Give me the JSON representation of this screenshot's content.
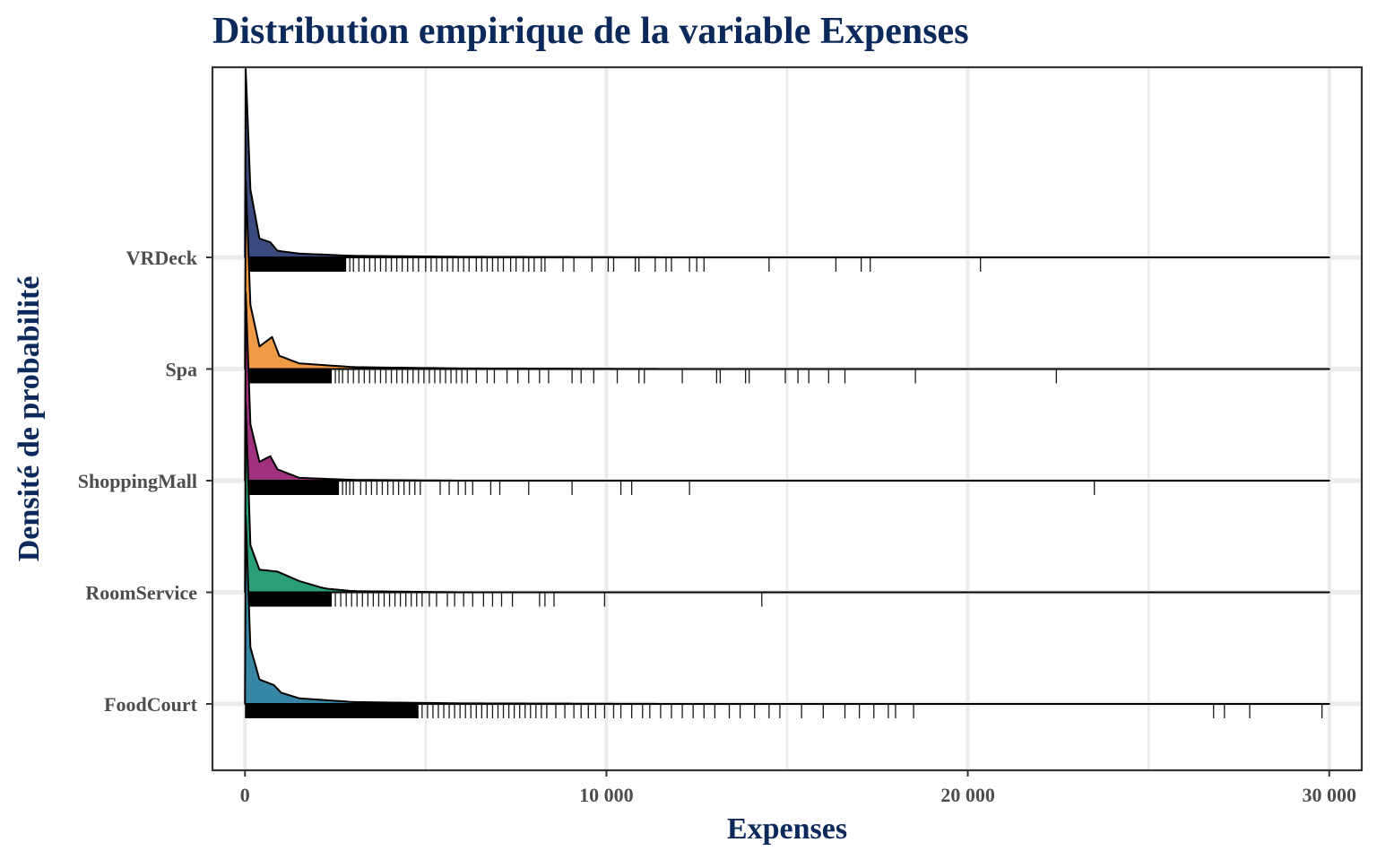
{
  "chart_data": {
    "type": "ridgeline",
    "title": "Distribution empirique de la variable Expenses",
    "xlabel": "Expenses",
    "ylabel": "Densité de probabilité",
    "xlim": [
      -900,
      30900
    ],
    "x_ticks": [
      0,
      10000,
      20000,
      30000
    ],
    "x_tick_labels": [
      "0",
      "10 000",
      "20 000",
      "30 000"
    ],
    "x_minor_grid": [
      5000,
      15000,
      25000
    ],
    "grid": true,
    "categories": [
      "VRDeck",
      "Spa",
      "ShoppingMall",
      "RoomService",
      "FoodCourt"
    ],
    "series": [
      {
        "name": "VRDeck",
        "color": "#3b4a7e",
        "density_points": [
          [
            0,
            0.0
          ],
          [
            20,
            1.0
          ],
          [
            150,
            0.36
          ],
          [
            400,
            0.1
          ],
          [
            700,
            0.08
          ],
          [
            900,
            0.035
          ],
          [
            1500,
            0.02
          ],
          [
            3000,
            0.008
          ],
          [
            6000,
            0.003
          ],
          [
            12000,
            0.0
          ]
        ],
        "rug_dense_to": 2800,
        "rug_sparse": [
          2900,
          3000,
          3150,
          3300,
          3450,
          3600,
          3750,
          3900,
          4050,
          4200,
          4350,
          4500,
          4650,
          4800,
          5000,
          5150,
          5300,
          5450,
          5600,
          5750,
          5900,
          6050,
          6200,
          6400,
          6550,
          6700,
          6850,
          7000,
          7150,
          7350,
          7500,
          7700,
          7850,
          8000,
          8200,
          8300,
          8800,
          9100,
          9600,
          10050,
          10200,
          10800,
          10900,
          11350,
          11650,
          11800,
          12300,
          12500,
          12700,
          14500,
          16350,
          17050,
          17300,
          20350
        ]
      },
      {
        "name": "Spa",
        "color": "#ef9a45",
        "density_points": [
          [
            0,
            0.0
          ],
          [
            20,
            1.0
          ],
          [
            150,
            0.34
          ],
          [
            400,
            0.12
          ],
          [
            750,
            0.17
          ],
          [
            950,
            0.07
          ],
          [
            1500,
            0.03
          ],
          [
            3000,
            0.01
          ],
          [
            6000,
            0.003
          ],
          [
            12000,
            0.0
          ]
        ],
        "rug_dense_to": 2400,
        "rug_sparse": [
          2500,
          2600,
          2700,
          2850,
          3000,
          3150,
          3300,
          3450,
          3600,
          3750,
          3900,
          4050,
          4200,
          4350,
          4500,
          4650,
          4800,
          4950,
          5100,
          5250,
          5400,
          5550,
          5700,
          5850,
          6000,
          6150,
          6400,
          6700,
          6900,
          7250,
          7550,
          7850,
          8150,
          8400,
          9050,
          9300,
          9650,
          10300,
          10900,
          11050,
          12100,
          13050,
          13150,
          13850,
          13950,
          14950,
          15300,
          15600,
          16150,
          16600,
          18550,
          22450
        ]
      },
      {
        "name": "ShoppingMall",
        "color": "#a0317f",
        "density_points": [
          [
            0,
            0.0
          ],
          [
            20,
            1.0
          ],
          [
            150,
            0.3
          ],
          [
            400,
            0.1
          ],
          [
            700,
            0.13
          ],
          [
            900,
            0.06
          ],
          [
            1500,
            0.015
          ],
          [
            3000,
            0.004
          ],
          [
            6000,
            0.0
          ]
        ],
        "rug_dense_to": 2600,
        "rug_sparse": [
          2700,
          2800,
          2900,
          3000,
          3200,
          3350,
          3500,
          3650,
          3800,
          3950,
          4100,
          4250,
          4400,
          4550,
          4700,
          4850,
          5400,
          5650,
          5900,
          6100,
          6300,
          6800,
          7050,
          7850,
          9050,
          10400,
          10700,
          12300,
          23500
        ]
      },
      {
        "name": "RoomService",
        "color": "#2a9e76",
        "density_points": [
          [
            0,
            0.0
          ],
          [
            20,
            1.0
          ],
          [
            150,
            0.25
          ],
          [
            400,
            0.12
          ],
          [
            900,
            0.11
          ],
          [
            1500,
            0.06
          ],
          [
            2200,
            0.02
          ],
          [
            3000,
            0.006
          ],
          [
            6000,
            0.0
          ]
        ],
        "rug_dense_to": 2400,
        "rug_sparse": [
          2500,
          2650,
          2800,
          2950,
          3100,
          3250,
          3400,
          3550,
          3700,
          3850,
          4000,
          4150,
          4300,
          4450,
          4600,
          4750,
          4900,
          5100,
          5300,
          5600,
          5800,
          6050,
          6300,
          6600,
          6850,
          7100,
          7400,
          8150,
          8300,
          8550,
          9950,
          14300
        ]
      },
      {
        "name": "FoodCourt",
        "color": "#3786a6",
        "density_points": [
          [
            0,
            0.0
          ],
          [
            20,
            1.0
          ],
          [
            150,
            0.3
          ],
          [
            400,
            0.13
          ],
          [
            800,
            0.1
          ],
          [
            1000,
            0.06
          ],
          [
            1500,
            0.03
          ],
          [
            3000,
            0.01
          ],
          [
            6000,
            0.003
          ],
          [
            12000,
            0.0
          ]
        ],
        "rug_dense_to": 4800,
        "rug_sparse": [
          4900,
          5050,
          5200,
          5350,
          5500,
          5650,
          5800,
          5950,
          6100,
          6250,
          6400,
          6550,
          6700,
          6850,
          7000,
          7150,
          7300,
          7450,
          7600,
          7750,
          7900,
          8050,
          8200,
          8350,
          8600,
          8850,
          9100,
          9300,
          9500,
          9700,
          9950,
          10200,
          10400,
          10700,
          11000,
          11200,
          11500,
          11800,
          12100,
          12400,
          12700,
          13000,
          13400,
          13700,
          14100,
          14500,
          14800,
          15400,
          16000,
          16600,
          17000,
          17400,
          17800,
          18000,
          18500,
          26800,
          27100,
          27800,
          29800
        ]
      }
    ]
  }
}
